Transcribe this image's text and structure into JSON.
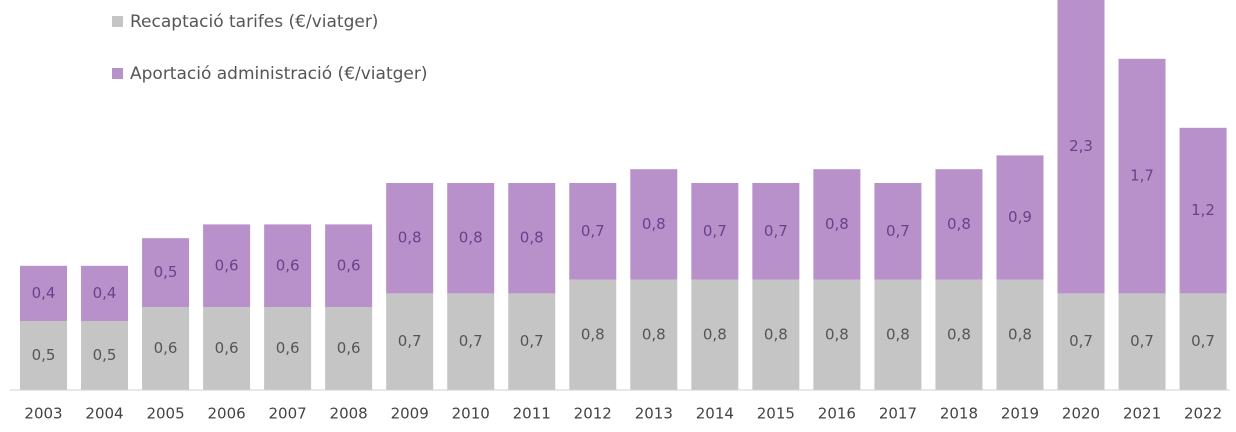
{
  "chart_data": {
    "type": "stacked_bar",
    "categories": [
      "2003",
      "2004",
      "2005",
      "2006",
      "2007",
      "2008",
      "2009",
      "2010",
      "2011",
      "2012",
      "2013",
      "2014",
      "2015",
      "2016",
      "2017",
      "2018",
      "2019",
      "2020",
      "2021",
      "2022"
    ],
    "series": [
      {
        "name": "Recaptació tarifes (€/viatger)",
        "color": "#c6c5c5",
        "label_color": "#555555",
        "values": [
          0.5,
          0.5,
          0.6,
          0.6,
          0.6,
          0.6,
          0.7,
          0.7,
          0.7,
          0.8,
          0.8,
          0.8,
          0.8,
          0.8,
          0.8,
          0.8,
          0.8,
          0.7,
          0.7,
          0.7
        ],
        "value_labels": [
          "0,5",
          "0,5",
          "0,6",
          "0,6",
          "0,6",
          "0,6",
          "0,7",
          "0,7",
          "0,7",
          "0,8",
          "0,8",
          "0,8",
          "0,8",
          "0,8",
          "0,8",
          "0,8",
          "0,8",
          "0,7",
          "0,7",
          "0,7"
        ]
      },
      {
        "name": "Aportació administració (€/viatger)",
        "color": "#b891ca",
        "label_color": "#6e3f8c",
        "values": [
          0.4,
          0.4,
          0.5,
          0.6,
          0.6,
          0.6,
          0.8,
          0.8,
          0.8,
          0.7,
          0.8,
          0.7,
          0.7,
          0.8,
          0.7,
          0.8,
          0.9,
          2.3,
          1.7,
          1.2
        ],
        "value_labels": [
          "0,4",
          "0,4",
          "0,5",
          "0,6",
          "0,6",
          "0,6",
          "0,8",
          "0,8",
          "0,8",
          "0,7",
          "0,8",
          "0,7",
          "0,7",
          "0,8",
          "0,7",
          "0,8",
          "0,9",
          "2,3",
          "1,7",
          "1,2"
        ]
      }
    ]
  }
}
